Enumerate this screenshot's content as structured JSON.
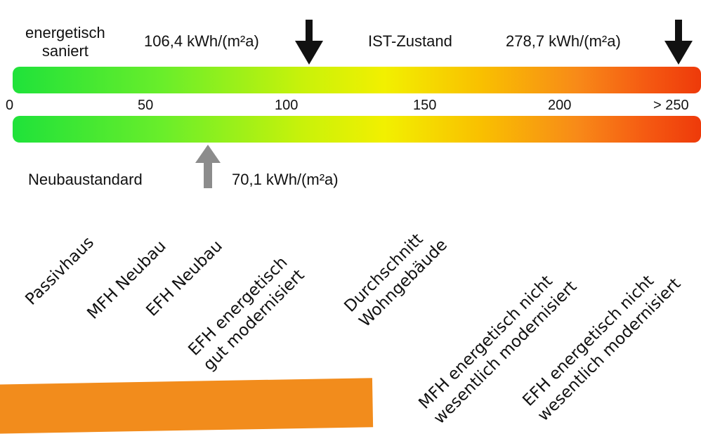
{
  "top": {
    "energetisch_line1": "energetisch",
    "energetisch_line2": "saniert",
    "value_renovated": "106,4 kWh/(m²a)",
    "ist_zustand": "IST-Zustand",
    "value_current": "278,7 kWh/(m²a)"
  },
  "scale": {
    "ticks": [
      "0",
      "50",
      "100",
      "150",
      "200",
      "> 250"
    ]
  },
  "bottom": {
    "neubaustandard": "Neubaustandard",
    "value_new": "70,1 kWh/(m²a)"
  },
  "categories": {
    "passivhaus": "Passivhaus",
    "mfh_neubau": "MFH Neubau",
    "efh_neubau": "EFH Neubau",
    "efh_gut_l1": "EFH energetisch",
    "efh_gut_l2": "gut modernisiert",
    "durchschnitt_l1": "Durchschnitt",
    "durchschnitt_l2": "Wohngebäude",
    "mfh_nicht_l1": "MFH energetisch nicht",
    "mfh_nicht_l2": "wesentlich modernisiert",
    "efh_nicht_l1": "EFH energetisch nicht",
    "efh_nicht_l2": "wesentlich modernisiert"
  },
  "colors": {
    "scale_start": "#1fe23a",
    "scale_end": "#ee3a0a",
    "arrow_black": "#111111",
    "arrow_grey": "#8c8c8c",
    "accent_orange": "#f28c1c"
  },
  "icons": [
    "arrow-down-icon",
    "arrow-up-icon"
  ]
}
